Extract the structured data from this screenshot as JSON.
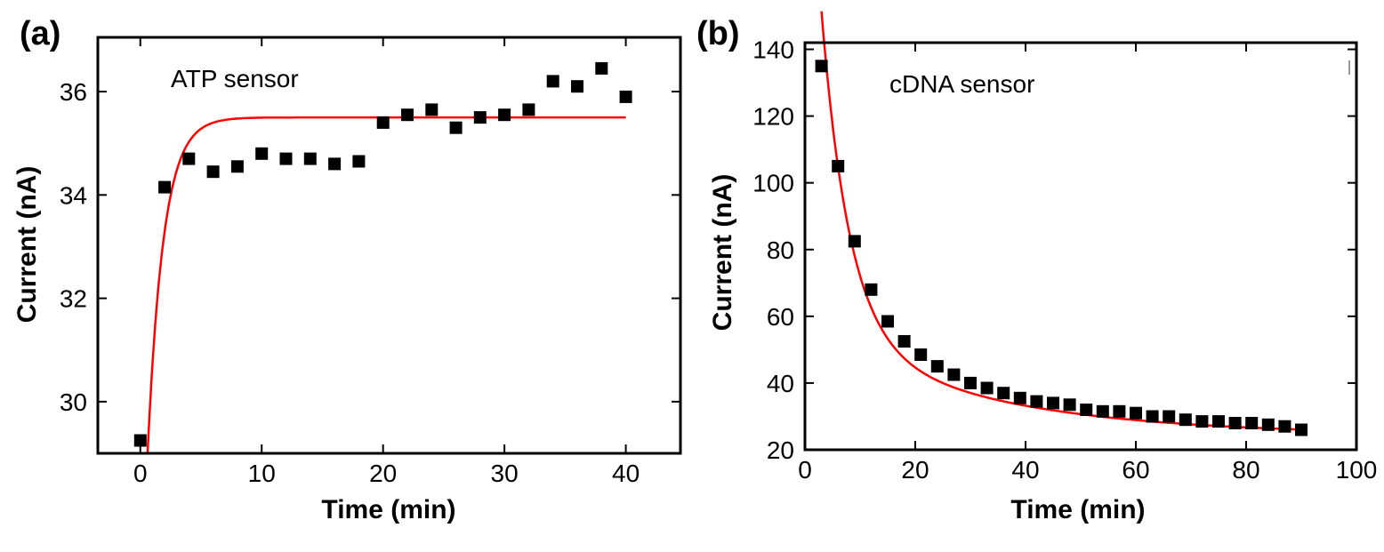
{
  "chart_data": [
    {
      "type": "scatter",
      "panel_label": "(a)",
      "annotation": "ATP sensor",
      "xlabel": "Time (min)",
      "ylabel": "Current (nA)",
      "xlim": [
        -3.5,
        44.5
      ],
      "ylim": [
        29.0,
        37.05
      ],
      "xticks": [
        0,
        10,
        20,
        30,
        40
      ],
      "yticks": [
        30,
        32,
        34,
        36
      ],
      "x": [
        0,
        2,
        4,
        6,
        8,
        10,
        12,
        14,
        16,
        18,
        20,
        22,
        24,
        26,
        28,
        30,
        32,
        34,
        36,
        38,
        40
      ],
      "y": [
        29.25,
        34.15,
        34.7,
        34.45,
        34.55,
        34.8,
        34.7,
        34.7,
        34.6,
        34.65,
        35.4,
        35.55,
        35.65,
        35.3,
        35.5,
        35.55,
        35.65,
        36.2,
        36.1,
        36.45,
        35.9
      ],
      "fit": {
        "type": "saturation",
        "t0": 0.6,
        "plateau": 35.5,
        "amplitude": 6.5,
        "tau": 1.3,
        "x_end": 40
      },
      "grid": false,
      "marker_color": "#000000",
      "fit_color": "#ff0000"
    },
    {
      "type": "scatter",
      "panel_label": "(b)",
      "annotation": "cDNA sensor",
      "xlabel": "Time (min)",
      "ylabel": "Current (nA)",
      "xlim": [
        0,
        100
      ],
      "ylim": [
        20,
        142
      ],
      "xticks": [
        0,
        20,
        40,
        60,
        80,
        100
      ],
      "yticks": [
        20,
        40,
        60,
        80,
        100,
        120,
        140
      ],
      "x": [
        3,
        6,
        9,
        12,
        15,
        18,
        21,
        24,
        27,
        30,
        33,
        36,
        39,
        42,
        45,
        48,
        51,
        54,
        57,
        60,
        63,
        66,
        69,
        72,
        75,
        78,
        81,
        84,
        87,
        90
      ],
      "y": [
        135,
        105,
        82.5,
        68,
        58.5,
        52.5,
        48.5,
        45,
        42.5,
        40,
        38.5,
        37,
        35.5,
        34.5,
        34,
        33.5,
        32,
        31.5,
        31.5,
        31,
        30,
        30,
        29,
        28.5,
        28.5,
        28,
        28,
        27.5,
        27,
        26
      ],
      "fit": {
        "type": "decay",
        "x_start": 3,
        "x_end": 91,
        "base": 26,
        "a1": 97,
        "tau1": 5,
        "a2": 30,
        "tau2": 30
      },
      "grid": false,
      "marker_color": "#000000",
      "fit_color": "#ff0000"
    }
  ]
}
